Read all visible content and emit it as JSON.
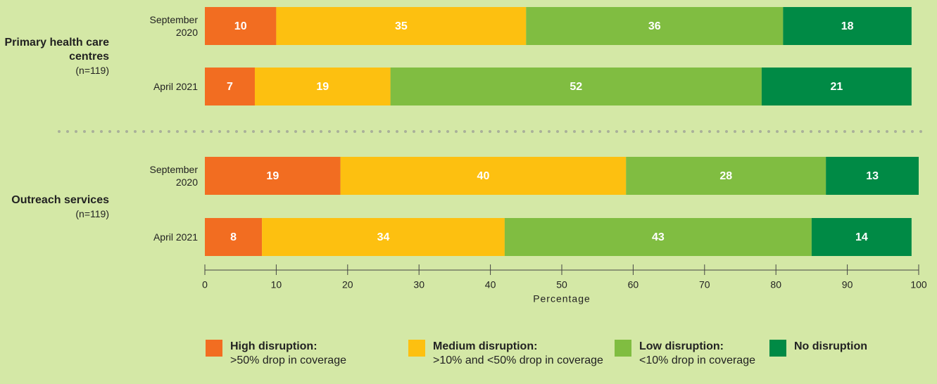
{
  "chart_data": {
    "type": "bar",
    "orientation": "horizontal",
    "stacked": true,
    "groups": [
      {
        "name": "Primary health care centres",
        "n": "(n=119)",
        "rows": [
          0,
          1
        ]
      },
      {
        "name": "Outreach services",
        "n": "(n=119)",
        "rows": [
          2,
          3
        ]
      }
    ],
    "categories": [
      "September 2020",
      "April 2021",
      "September 2020",
      "April 2021"
    ],
    "series": [
      {
        "name": "High disruption:",
        "description": ">50% drop in coverage",
        "color": "#f26d21",
        "values": [
          10,
          7,
          19,
          8
        ]
      },
      {
        "name": "Medium disruption:",
        "description": ">10% and <50% drop in coverage",
        "color": "#fdc010",
        "values": [
          35,
          19,
          40,
          34
        ]
      },
      {
        "name": "Low disruption:",
        "description": "<10% drop in coverage",
        "color": "#80bd41",
        "values": [
          36,
          52,
          28,
          43
        ]
      },
      {
        "name": "No disruption",
        "color": "#008a45",
        "values": [
          18,
          21,
          13,
          14
        ]
      }
    ],
    "xlabel": "Percentage",
    "xlim": [
      0,
      100
    ],
    "xticks": [
      0,
      10,
      20,
      30,
      40,
      50,
      60,
      70,
      80,
      90,
      100
    ]
  }
}
